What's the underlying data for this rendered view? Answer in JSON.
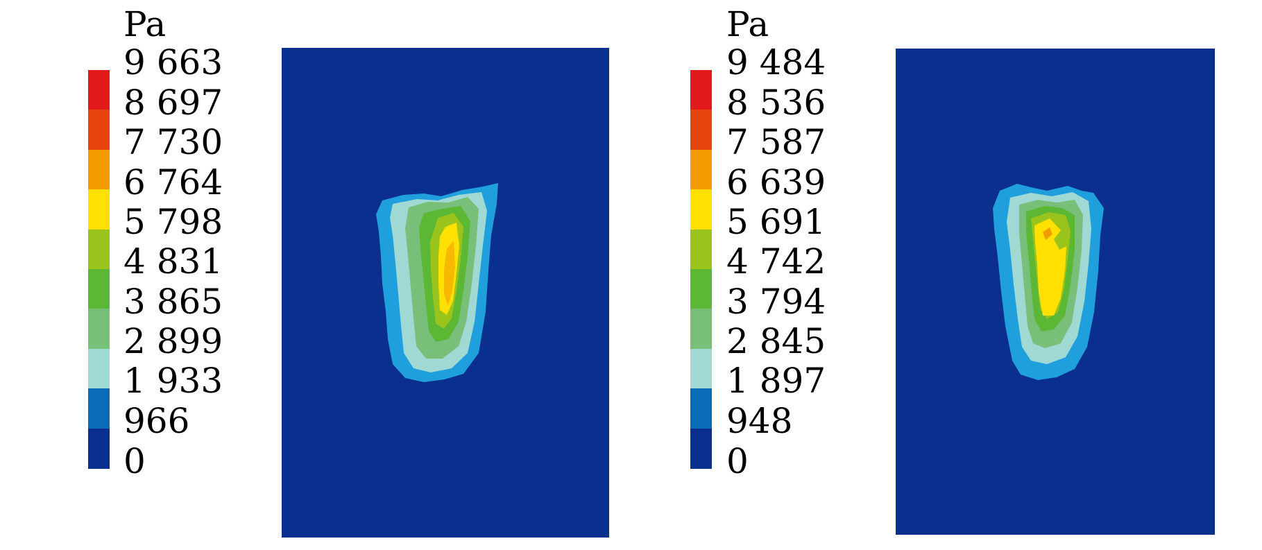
{
  "chart_data": [
    {
      "type": "heatmap",
      "unit": "Pa",
      "colorbar_levels": [
        "9 663",
        "8 697",
        "7 730",
        "6 764",
        "5 798",
        "4 831",
        "3 865",
        "2 899",
        "1 933",
        "966",
        "0"
      ],
      "colorbar_values": [
        9663,
        8697,
        7730,
        6764,
        5798,
        4831,
        3865,
        2899,
        1933,
        966,
        0
      ],
      "colors": [
        "#e31a1c",
        "#e6450f",
        "#f29a00",
        "#ffe000",
        "#9ac31c",
        "#5bb734",
        "#78c07a",
        "#a0d8d4",
        "#0a6bb7",
        "#0a2f8f"
      ],
      "background_color": "#0a2f8f",
      "peak_value_level": "5 798 - 6 764"
    },
    {
      "type": "heatmap",
      "unit": "Pa",
      "colorbar_levels": [
        "9 484",
        "8 536",
        "7 587",
        "6 639",
        "5 691",
        "4 742",
        "3 794",
        "2 845",
        "1 897",
        "948",
        "0"
      ],
      "colorbar_values": [
        9484,
        8536,
        7587,
        6639,
        5691,
        4742,
        3794,
        2845,
        1897,
        948,
        0
      ],
      "colors": [
        "#e31a1c",
        "#e6450f",
        "#f29a00",
        "#ffe000",
        "#9ac31c",
        "#5bb734",
        "#78c07a",
        "#a0d8d4",
        "#0a6bb7",
        "#0a2f8f"
      ],
      "background_color": "#0a2f8f",
      "peak_value_level": "5 691 - 6 639"
    }
  ]
}
